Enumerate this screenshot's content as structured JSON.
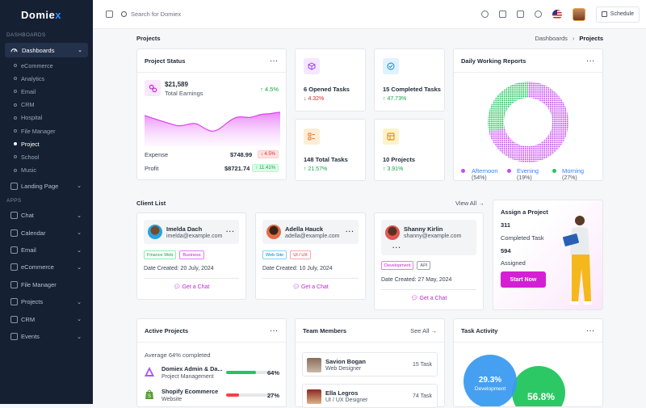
{
  "brand": {
    "name_main": "Domie",
    "name_accent": "x"
  },
  "sidebar": {
    "section_dashboards": "DASHBOARDS",
    "dashboards_label": "Dashboards",
    "sub_items": [
      "eCommerce",
      "Analytics",
      "Email",
      "CRM",
      "Hospital",
      "File Manager",
      "Project",
      "School",
      "Music"
    ],
    "active_sub": "Project",
    "landing_label": "Landing Page",
    "section_apps": "APPS",
    "apps": [
      {
        "label": "Chat",
        "has_chevron": true
      },
      {
        "label": "Calendar",
        "has_chevron": true
      },
      {
        "label": "Email",
        "has_chevron": true
      },
      {
        "label": "eCommerce",
        "has_chevron": true
      },
      {
        "label": "File Manager",
        "has_chevron": false
      },
      {
        "label": "Projects",
        "has_chevron": true
      },
      {
        "label": "CRM",
        "has_chevron": true
      },
      {
        "label": "Events",
        "has_chevron": true
      }
    ]
  },
  "topbar": {
    "search_placeholder": "Search for Domiex",
    "schedule_label": "Schedule"
  },
  "page": {
    "title": "Projects",
    "breadcrumb_parent": "Dashboards",
    "breadcrumb_current": "Projects"
  },
  "project_status": {
    "title": "Project Status",
    "total_earnings_value": "$21,589",
    "total_earnings_label": "Total Earnings",
    "earnings_change": "↑ 4.5%",
    "expense_label": "Expense",
    "expense_value": "$748.99",
    "expense_change": "↓ 4.5%",
    "profit_label": "Profit",
    "profit_value": "$8721.74",
    "profit_change": "↑ 11.41%",
    "accent": "#e879f9"
  },
  "stats": [
    {
      "title": "6 Opened Tasks",
      "change": "↓ 4.32%",
      "trend": "down",
      "icon": "box-icon",
      "bg": "#f3e8ff",
      "fg": "#9333ea"
    },
    {
      "title": "15 Completed Tasks",
      "change": "↑ 47.73%",
      "trend": "up",
      "icon": "check-circle-icon",
      "bg": "#e0f2fe",
      "fg": "#0284c7"
    },
    {
      "title": "148 Total Tasks",
      "change": "↑ 21.57%",
      "trend": "up",
      "icon": "list-icon",
      "bg": "#ffedd5",
      "fg": "#ea580c"
    },
    {
      "title": "10 Projects",
      "change": "↑ 3.91%",
      "trend": "up",
      "icon": "layout-icon",
      "bg": "#fef3c7",
      "fg": "#d97706"
    }
  ],
  "daily_reports": {
    "title": "Daily Working Reports",
    "legend": [
      {
        "name": "Afternoon",
        "pct": "(54%)",
        "color": "#c44ef0"
      },
      {
        "name": "Evening",
        "pct": "(19%)",
        "color": "#c44ef0"
      },
      {
        "name": "Morning",
        "pct": "(27%)",
        "color": "#22c55e"
      }
    ]
  },
  "clients": {
    "title": "Client List",
    "view_all": "View All →",
    "date_prefix": "Date Created:",
    "chat_label": "Get a Chat",
    "items": [
      {
        "name": "Imelda Dach",
        "email": "imelda@example.com",
        "tags": [
          "Finance Web",
          "Business"
        ],
        "date": "20 July, 2024"
      },
      {
        "name": "Adella Hauck",
        "email": "adella@example.com",
        "tags": [
          "Web Site",
          "UI / UX"
        ],
        "date": "10 July, 2024"
      },
      {
        "name": "Shanny Kirlin",
        "email": "shanny@example.com",
        "tags": [
          "Development",
          "API"
        ],
        "date": "27 May, 2024"
      }
    ]
  },
  "assign": {
    "title": "Assign a Project",
    "count1": "311",
    "label1": "Completed Task",
    "count2": "594",
    "label2": "Assigned",
    "button": "Start Now"
  },
  "active_projects": {
    "title": "Active Projects",
    "subtitle": "Average 64% completed",
    "items": [
      {
        "name": "Domiex Admin & Da...",
        "sub": "Project Management",
        "pct": "64%",
        "value": 64,
        "color": "#22c55e"
      },
      {
        "name": "Shopify Ecommerce",
        "sub": "Website",
        "pct": "27%",
        "value": 27,
        "color": "#ef4444"
      }
    ]
  },
  "team": {
    "title": "Team Members",
    "see_all": "See All →",
    "items": [
      {
        "name": "Savion Bogan",
        "role": "Web Designer",
        "tasks": "15 Task"
      },
      {
        "name": "Ella Legros",
        "role": "UI / UX Designer",
        "tasks": "74 Task"
      }
    ]
  },
  "task_activity": {
    "title": "Task Activity",
    "bubbles": [
      {
        "value": "29.3%",
        "label": "Development",
        "color": "#3b9bf0"
      },
      {
        "value": "56.8%",
        "label": "",
        "color": "#22c55e"
      }
    ]
  }
}
